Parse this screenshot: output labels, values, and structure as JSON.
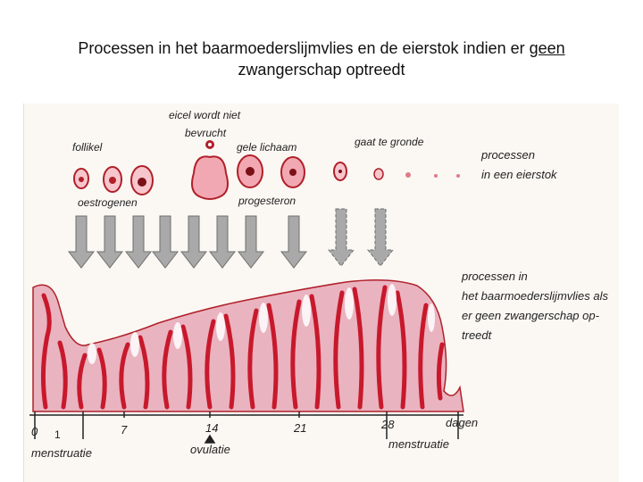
{
  "title": {
    "line1_before": "Processen in het baarmoederslijmvlies en de eierstok indien er ",
    "line1_underlined": "geen",
    "line2": "zwangerschap optreedt"
  },
  "ovary": {
    "follikel": "follikel",
    "eicel_line1": "eicel wordt niet",
    "eicel_line2": "bevrucht",
    "gele_lichaam": "gele lichaam",
    "gaat_te_gronde": "gaat te gronde",
    "process_line1": "processen",
    "process_line2": "in een eierstok",
    "oestrogenen": "oestrogenen",
    "progesteron": "progesteron"
  },
  "uterus": {
    "line1": "processen in",
    "line2": "het baarmoederslijmvlies als",
    "line3": "er geen zwangerschap op-",
    "line4": "treedt"
  },
  "axis": {
    "ticks": [
      "0",
      "7",
      "14",
      "21",
      "28"
    ],
    "unit": "dagen",
    "marker_1": "1",
    "menstruatie_left": "menstruatie",
    "ovulatie": "ovulatie",
    "menstruatie_right": "menstruatie"
  },
  "colors": {
    "tissue_pink": "#eab3c0",
    "vessel_red": "#c8192c",
    "arrow_gray": "#a9a9a9"
  }
}
